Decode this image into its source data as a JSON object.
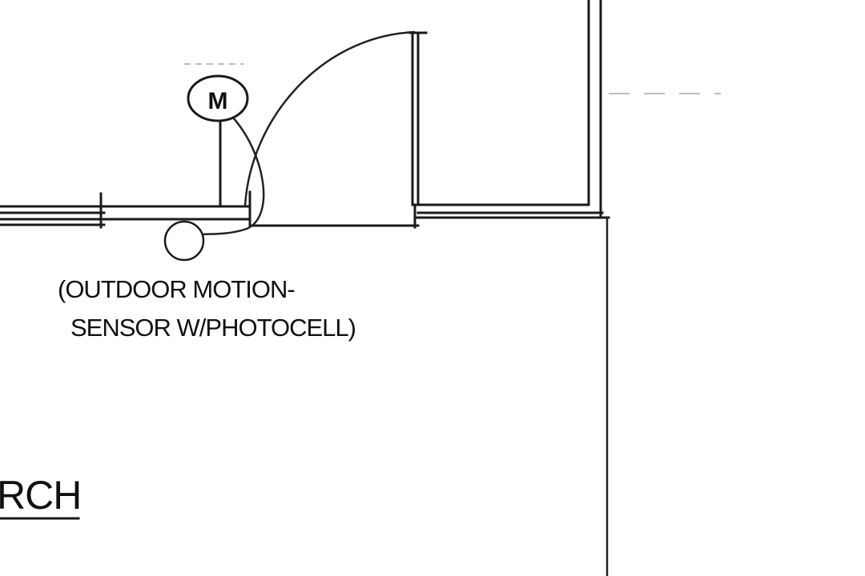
{
  "motion_symbol": {
    "letter": "M"
  },
  "sensor_note": {
    "line1": "(OUTDOOR MOTION-",
    "line2": "SENSOR W/PHOTOCELL)"
  },
  "room_label": {
    "text": "RCH",
    "underlined": true
  },
  "colors": {
    "ink": "#1a1a1a",
    "paper": "#ffffff",
    "faint": "#bdbdbd"
  }
}
